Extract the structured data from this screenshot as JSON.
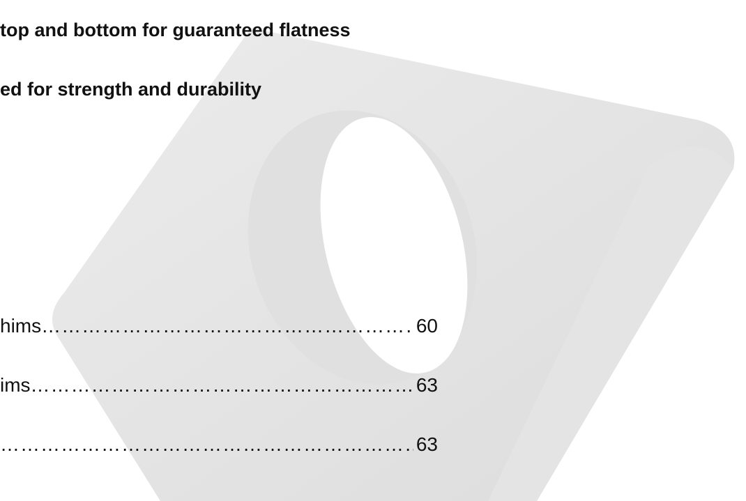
{
  "bullets": [
    "top and bottom for guaranteed flatness",
    "ed for strength and durability"
  ],
  "toc": [
    {
      "label": "hims",
      "page": "60"
    },
    {
      "label": "ims",
      "page": "63"
    },
    {
      "page": "63"
    }
  ]
}
